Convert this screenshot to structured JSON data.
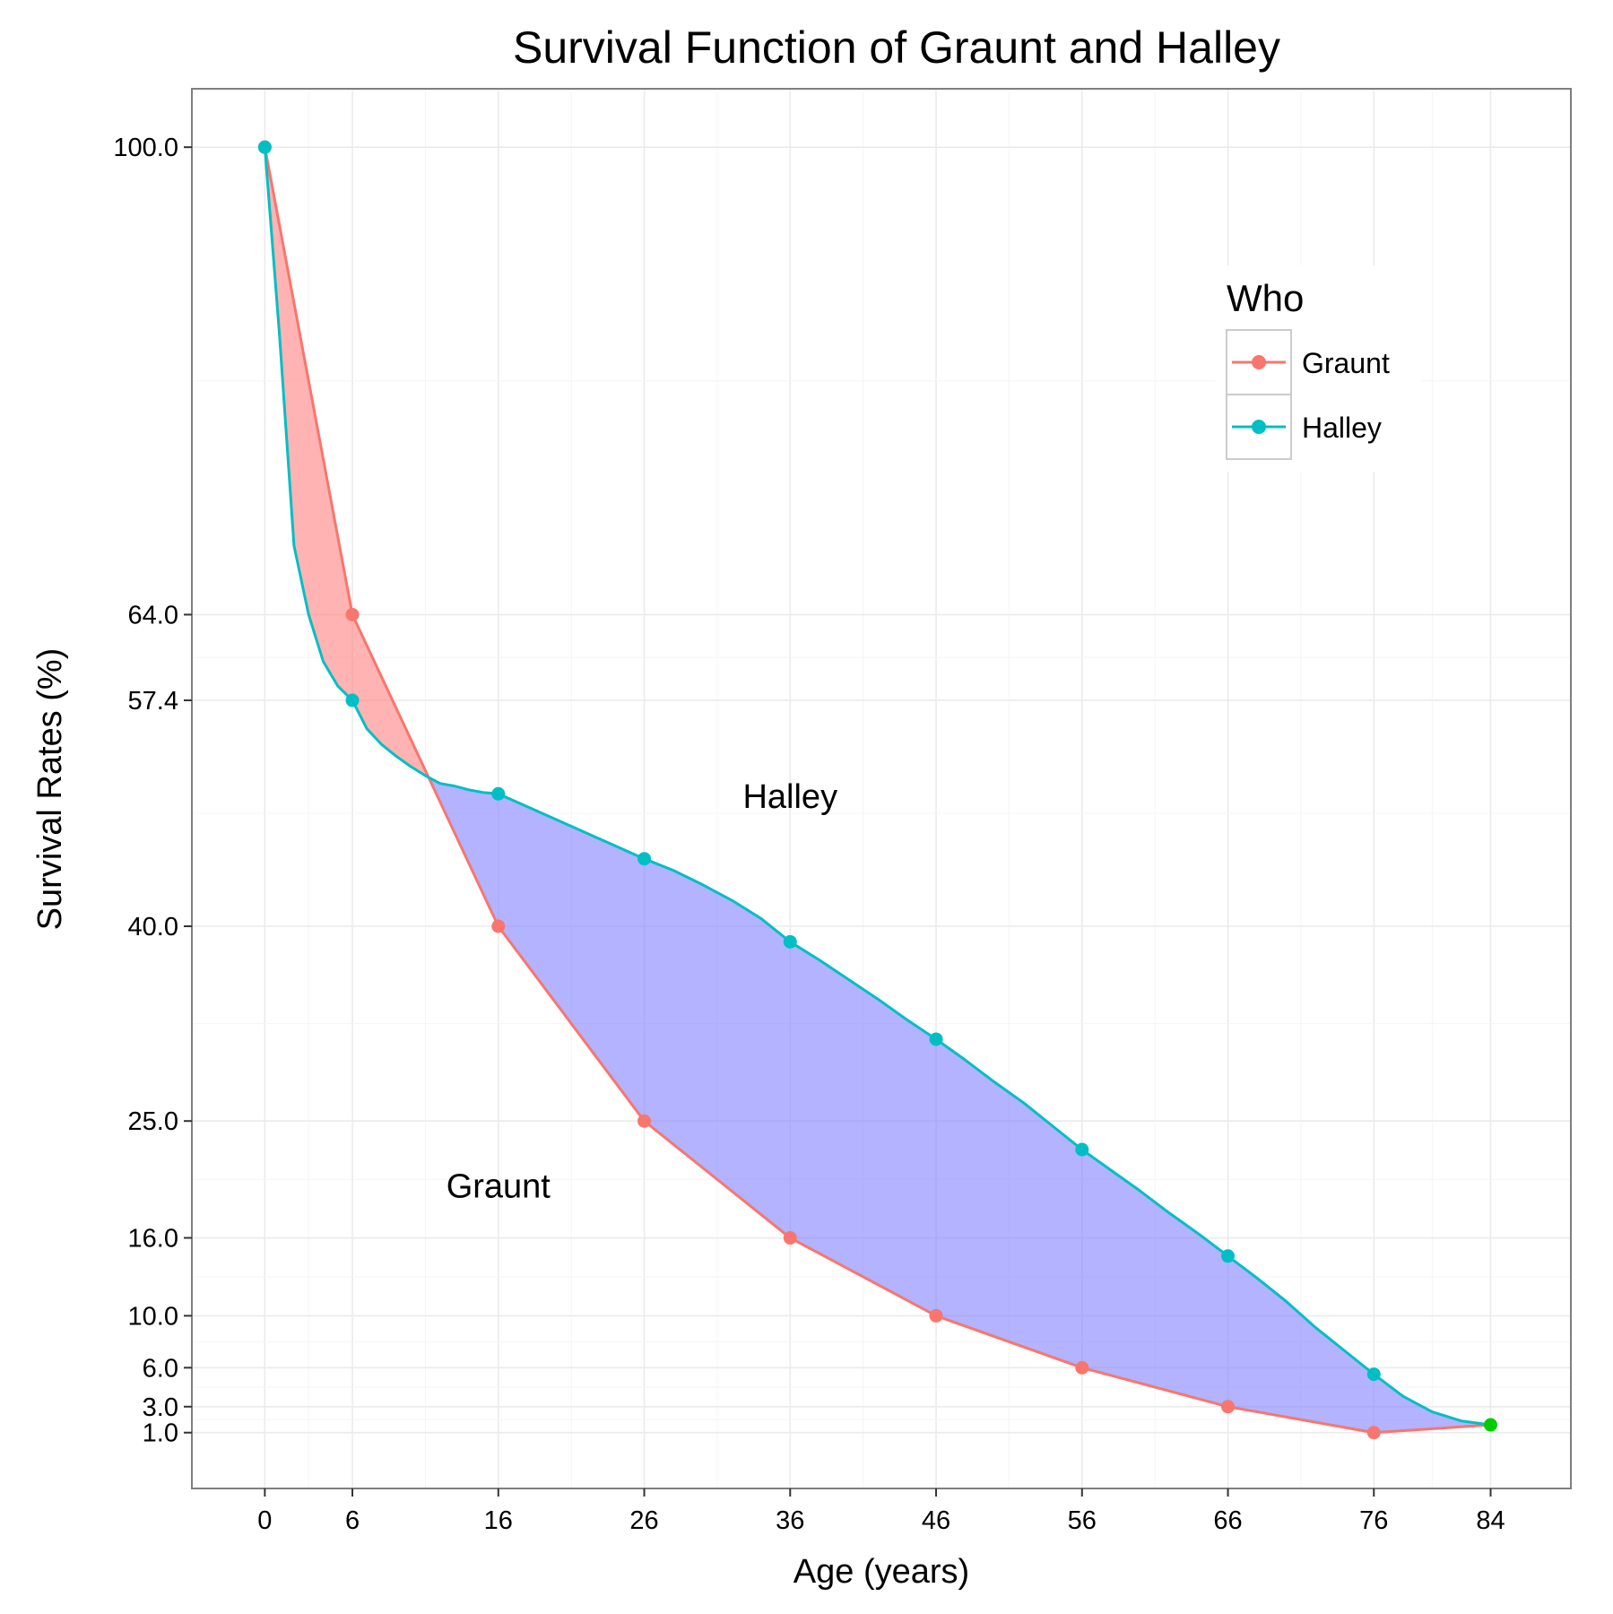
{
  "chart_data": {
    "type": "line",
    "title": "Survival Function of Graunt and Halley",
    "xlabel": "Age (years)",
    "ylabel": "Survival Rates (%)",
    "xlim": [
      -5,
      89.5
    ],
    "ylim": [
      -3.3,
      104.5
    ],
    "x_ticks": [
      0,
      6,
      16,
      26,
      36,
      46,
      56,
      66,
      76,
      84
    ],
    "y_ticks": [
      100.0,
      64.0,
      57.4,
      40.0,
      25.0,
      16.0,
      10.0,
      6.0,
      3.0,
      1.0
    ],
    "y_tick_labels": [
      "100.0",
      "64.0",
      "57.4",
      "40.0",
      "25.0",
      "16.0",
      "10.0",
      "6.0",
      "3.0",
      "1.0"
    ],
    "grid": true,
    "legend": {
      "title": "Who",
      "placement": "top-right",
      "entries": [
        "Graunt",
        "Halley"
      ]
    },
    "series": [
      {
        "name": "Graunt",
        "color": "#f8766d",
        "x": [
          0,
          6,
          16,
          26,
          36,
          46,
          56,
          66,
          76
        ],
        "y": [
          100,
          64,
          40,
          25,
          16,
          10,
          6,
          3,
          1
        ]
      },
      {
        "name": "Halley",
        "color": "#00bfc4",
        "x": [
          0,
          6,
          16,
          26,
          36,
          46,
          56,
          66,
          76,
          84
        ],
        "y": [
          100,
          57.4,
          50.2,
          45.2,
          38.8,
          31.3,
          22.8,
          14.6,
          5.5,
          1.6
        ],
        "curve_x": [
          0,
          1,
          2,
          3,
          4,
          5,
          6,
          7,
          8,
          9,
          10,
          11,
          12,
          13,
          14,
          15,
          16,
          18,
          20,
          22,
          24,
          26,
          28,
          30,
          32,
          34,
          36,
          38,
          40,
          42,
          44,
          46,
          48,
          50,
          52,
          54,
          56,
          58,
          60,
          62,
          64,
          66,
          68,
          70,
          72,
          74,
          76,
          78,
          80,
          82,
          84
        ],
        "curve_y": [
          100,
          85.6,
          69.3,
          64.0,
          60.4,
          58.5,
          57.4,
          55.2,
          54.0,
          53.1,
          52.3,
          51.6,
          51.0,
          50.8,
          50.5,
          50.3,
          50.2,
          49.2,
          48.2,
          47.2,
          46.2,
          45.2,
          44.3,
          43.2,
          42.0,
          40.6,
          38.8,
          37.4,
          35.9,
          34.4,
          32.8,
          31.3,
          29.7,
          28.0,
          26.4,
          24.6,
          22.8,
          21.2,
          19.6,
          17.9,
          16.3,
          14.6,
          12.9,
          11.1,
          9.1,
          7.3,
          5.5,
          3.8,
          2.6,
          1.9,
          1.6
        ]
      }
    ],
    "fills": [
      {
        "name": "graunt-above",
        "color": "#ff8080",
        "opacity": 0.6
      },
      {
        "name": "halley-above",
        "color": "#8080ff",
        "opacity": 0.6
      }
    ],
    "end_point": {
      "x": 84,
      "y": 1.6,
      "color": "#00cc00"
    },
    "annotations": [
      {
        "text": "Halley",
        "x": 36,
        "y": 50.0
      },
      {
        "text": "Graunt",
        "x": 16,
        "y": 20.0
      }
    ]
  }
}
